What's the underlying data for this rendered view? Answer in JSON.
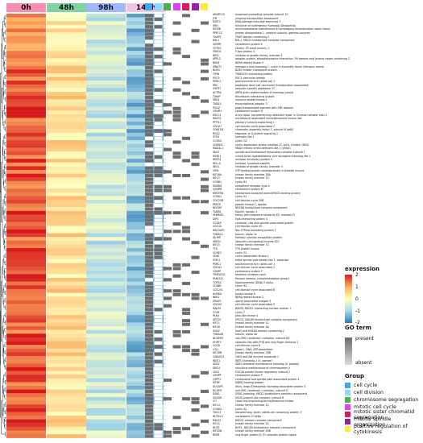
{
  "columns": [
    {
      "label": "0h",
      "color": "#f48fb1"
    },
    {
      "label": "48h",
      "color": "#7fd3a0"
    },
    {
      "label": "98h",
      "color": "#a0b8ff"
    },
    {
      "label": "144h",
      "color": "#f2c4e6"
    }
  ],
  "go_columns": [
    {
      "name": "cell cycle",
      "color": "#3fa9f5"
    },
    {
      "name": "cell division",
      "color": "#8fd9ff"
    },
    {
      "name": "chromosome segregation",
      "color": "#4caf50"
    },
    {
      "name": "mitotic cell cycle",
      "color": "#e040fb"
    },
    {
      "name": "mitotic sister chromatid segregation",
      "color": "#d81b60"
    },
    {
      "name": "mitotic spindle organization",
      "color": "#8e24aa"
    },
    {
      "name": "positive regulation of cytokinesis",
      "color": "#ffeb3b"
    }
  ],
  "legend": {
    "expression_title": "expression",
    "expression_ticks": [
      "2",
      "1",
      "0",
      "-1",
      "-2"
    ],
    "go_title": "GO term",
    "go_present": "present",
    "go_absent": "absent",
    "group_title": "Group"
  },
  "genes": [
    [
      "ANAPC10",
      "anaphase promoting complex subunit 10"
    ],
    [
      "JTB",
      "jumping translocation breakpoint"
    ],
    [
      "DDIT3",
      "DNA-damage-inducible transcript 3"
    ],
    [
      "ERH",
      "enhancer of rudimentary homolog (Drosophila)"
    ],
    [
      "MCM8",
      "minichromosome maintenance 8 homologous recombination repair factor"
    ],
    [
      "PPP1CC",
      "protein phosphatase 1, catalytic subunit, gamma isozyme"
    ],
    [
      "THAP5",
      "THAP domain containing 5"
    ],
    [
      "NSL1",
      "NSL1, MIS12 kinetochore complex component"
    ],
    [
      "CENPE",
      "centromere protein E"
    ],
    [
      "CETN2",
      "centrin, EF-hand protein, 2"
    ],
    [
      "FBXO5",
      "F-box protein 5"
    ],
    [
      "ING1",
      "inhibitor of growth family, member 1"
    ],
    [
      "APPL2",
      "adaptor protein, phosphotyrosine interaction, PH domain and leucine zipper containing 2"
    ],
    [
      "NEK4",
      "NIMA-related kinase 4"
    ],
    [
      "MNAT1",
      "menage a trois homolog 1, cyclin H assembly factor (Xenopus laevis)"
    ],
    [
      "BUB3",
      "BUB3 mitotic checkpoint protein"
    ],
    [
      "TIPIN",
      "TIMELESS interacting protein"
    ],
    [
      "POC5",
      "POC5 centriolar protein"
    ],
    [
      "PSRC1",
      "proline/serine-rich coiled-coil 1"
    ],
    [
      "PBC",
      "peptidase renal cell carcinoma (translocation-associated)"
    ],
    [
      "USP37",
      "ubiquitin specific peptidase 37"
    ],
    [
      "ACTR8",
      "ARP8 actin-related protein 8 homolog (yeast)"
    ],
    [
      "TXNIP",
      "thioredoxin interacting protein"
    ],
    [
      "VRK1",
      "vaccinia related kinase 1"
    ],
    [
      "TADA3",
      "transcriptional adaptor 3"
    ],
    [
      "POGZ",
      "pogo transposable element with ZNF domain"
    ],
    [
      "CENPH",
      "centromere protein H"
    ],
    [
      "ERCC2",
      "X-ray repair complementing defective repair in Chinese hamster cells 2"
    ],
    [
      "MASTL",
      "microtubule associated serine/threonine kinase-like"
    ],
    [
      "PTTG1",
      "pituitary tumor-transforming 1"
    ],
    [
      "CDCA7",
      "cell division cycle associated 7"
    ],
    [
      "CHAF1B",
      "chromatin assembly factor 1, subunit B (p60)"
    ],
    [
      "RGS2",
      "regulator of G-protein signaling 2"
    ],
    [
      "STD1",
      "stomatin-like 1"
    ],
    [
      "CCNG2",
      "cyclin G2"
    ],
    [
      "CDKN2C",
      "cyclin-dependent kinase inhibitor 2C (p18, inhibits CDK4)"
    ],
    [
      "MAD2L1",
      "MAD2 mitotic arrest deficient-like 1 (yeast)"
    ],
    [
      "SKA1",
      "spindle and kinetochore associated complex subunit 1"
    ],
    [
      "MYBL1",
      "v-myb avian myeloblastosis viral oncogene homolog-like 1"
    ],
    [
      "REEP4",
      "receptor accessory protein 4"
    ],
    [
      "HELLS",
      "helicase, lymphoid-specific"
    ],
    [
      "ING4",
      "inhibitor of growth family, member 4"
    ],
    [
      "GEM",
      "GTP binding protein overexpressed in skeletal muscle"
    ],
    [
      "KIF18A",
      "kinesin family member 18A"
    ],
    [
      "KIF23",
      "kinesin family member 23"
    ],
    [
      "CCNB1",
      "cyclin B1"
    ],
    [
      "EDNRA",
      "endothelin receptor type A"
    ],
    [
      "CENPM",
      "centromere protein M"
    ],
    [
      "KNSTRN",
      "kinetochore-localized astrin/SPAG5 binding protein"
    ],
    [
      "CCNA1",
      "cyclin A1"
    ],
    [
      "CDC20B",
      "cell division cycle 20B"
    ],
    [
      "PRKCE",
      "protein kinase C, epsilon"
    ],
    [
      "NDC80",
      "NDC80 kinetochore complex component"
    ],
    [
      "TUBB1",
      "tubulin, epsilon 1"
    ],
    [
      "FAM83D",
      "family with sequence similarity 83, member D"
    ],
    [
      "DIP5",
      "Opa interacting protein 5"
    ],
    [
      "CCSAP",
      "centriole, cilia and spindle-associated protein"
    ],
    [
      "CDC45",
      "cell division cycle 45"
    ],
    [
      "RACGAP1",
      "Rac GTPase activating protein 1"
    ],
    [
      "TUBA1C",
      "tubulin, alpha 1c"
    ],
    [
      "HJURP",
      "Holliday junction recognition protein"
    ],
    [
      "UBE2C",
      "ubiquitin-conjugating enzyme E2C"
    ],
    [
      "KIF15",
      "kinesin family member 15"
    ],
    [
      "TTK",
      "TTK protein kinase"
    ],
    [
      "CCNE2",
      "cyclin E2"
    ],
    [
      "CDK1",
      "cyclin-dependent kinase 1"
    ],
    [
      "ESPL1",
      "extra spindle pole bodies like 1, separase"
    ],
    [
      "PSRC1",
      "proline/serine-rich coiled-coil 1"
    ],
    [
      "CDCA2",
      "cell division cycle associated 2"
    ],
    [
      "CENPF",
      "centromere protein F"
    ],
    [
      "TIMELESS",
      "timeless circadian clock"
    ],
    [
      "FANCD2",
      "Fanconi anemia, complementation group I"
    ],
    [
      "TOP2A",
      "topoisomerase (DNA) II alpha"
    ],
    [
      "CCNB2",
      "cyclin B2"
    ],
    [
      "CDC25C",
      "cell division cycle associated 8"
    ],
    [
      "AURKA",
      "aurora kinase A"
    ],
    [
      "NEK2",
      "NIMA-related kinase 2"
    ],
    [
      "SPAG5",
      "sperm associated antigen 5"
    ],
    [
      "CDCA5",
      "cell division cycle associated 5"
    ],
    [
      "RAD51",
      "RAD51-RAD51 interacting nuclear orphan 1"
    ],
    [
      "CCNF",
      "cyclin F"
    ],
    [
      "PLK4",
      "polo-like kinase 4"
    ],
    [
      "SPC25",
      "SPC25, NDC80 kinetochore complex component"
    ],
    [
      "KIF11",
      "kinesin family member 11"
    ],
    [
      "KIF4A",
      "kinesin family member 4A"
    ],
    [
      "SUN2",
      "Sad1 and UNC84 domain containing 2"
    ],
    [
      "TUBA4B",
      "tubulin, alpha 4b"
    ],
    [
      "NCAPD3",
      "non-SMC condensin I complex, subunit D3"
    ],
    [
      "UHRF1",
      "ubiquitin-like with PHD and ring finger domains 1"
    ],
    [
      "CDC6",
      "cell division cycle 6"
    ],
    [
      "LIG1",
      "ligase I, DNA, ATP-dependent"
    ],
    [
      "KIF18B",
      "kinesin family member 18B"
    ],
    [
      "CABLES1",
      "Cdk5 and Abl enzyme substrate 1"
    ],
    [
      "WEE1",
      "WEE1 homolog 2 (S. pombe)"
    ],
    [
      "SDE2",
      "SDE2 telomere maintenance homolog (S. pombe)"
    ],
    [
      "SMC4",
      "structural maintenance of chromosomes 4"
    ],
    [
      "CKS2",
      "CDC28 protein kinase regulatory subunit 2"
    ],
    [
      "CENPP",
      "centromere protein P"
    ],
    [
      "CSPP1",
      "centrosome and spindle pole associated protein 1"
    ],
    [
      "MTBP",
      "MDM2 binding protein"
    ],
    [
      "DLGAP5",
      "discs, large (Drosophila) homolog-associated protein 5"
    ],
    [
      "NCAPG",
      "non-SMC condensin I complex, subunit G"
    ],
    [
      "DSN1",
      "DSN1 homolog, MIS12 kinetochore complex component"
    ],
    [
      "HAUS8",
      "HAUS augmin-like complex, subunit 8"
    ],
    [
      "CIT",
      "citron rho-interacting serine/threonine kinase"
    ],
    [
      "KIF14",
      "kinesin family member 14"
    ],
    [
      "CCNA2",
      "cyclin A2"
    ],
    [
      "TACC3",
      "transforming, acidic coiled-coil containing protein 3"
    ],
    [
      "NUP214",
      "nucleoporin 214kDa"
    ],
    [
      "RAD21",
      "RAD21 cohesin complex component"
    ],
    [
      "KIF2C",
      "kinesin family member 2C"
    ],
    [
      "NUF2",
      "NUF2, NDC80 kinetochore complex component"
    ],
    [
      "KIF20B",
      "kinesin family member 20B"
    ],
    [
      "RNF8",
      "ring finger protein 8, E3 ubiquitin protein ligase"
    ]
  ]
}
